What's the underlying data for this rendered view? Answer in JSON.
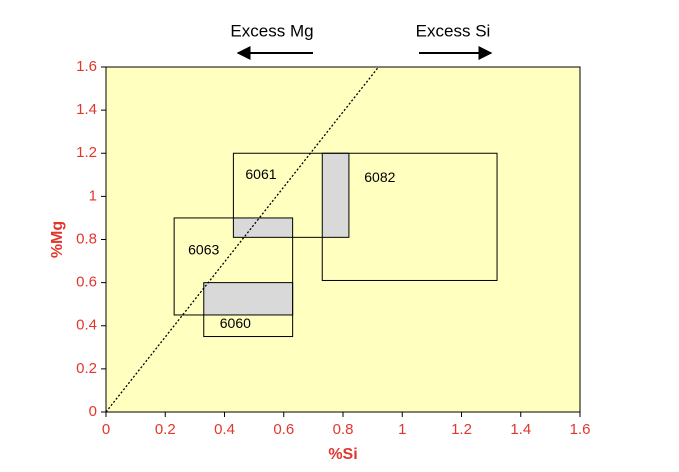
{
  "chart_data": {
    "type": "region",
    "x_label": "%Si",
    "y_label": "%Mg",
    "xlim": [
      0,
      1.6
    ],
    "ylim": [
      0,
      1.6
    ],
    "xticks": [
      0,
      0.2,
      0.4,
      0.6,
      0.8,
      1,
      1.2,
      1.4,
      1.6
    ],
    "yticks": [
      0,
      0.2,
      0.4,
      0.6,
      0.8,
      1,
      1.2,
      1.4,
      1.6
    ],
    "regions": [
      {
        "name": "6061",
        "x": [
          0.43,
          0.82
        ],
        "y": [
          0.81,
          1.2
        ]
      },
      {
        "name": "6082",
        "x": [
          0.73,
          1.32
        ],
        "y": [
          0.61,
          1.2
        ]
      },
      {
        "name": "6063",
        "x": [
          0.23,
          0.63
        ],
        "y": [
          0.45,
          0.9
        ]
      },
      {
        "name": "6060",
        "x": [
          0.33,
          0.63
        ],
        "y": [
          0.35,
          0.6
        ]
      }
    ],
    "reference_line": {
      "x": [
        0,
        0.92
      ],
      "y": [
        0,
        1.6
      ]
    },
    "annotations": [
      "Excess Mg",
      "Excess Si"
    ],
    "background": "#ffffc0",
    "overlap_color": "#d9d9d9",
    "axis_color": "#e2362b"
  }
}
